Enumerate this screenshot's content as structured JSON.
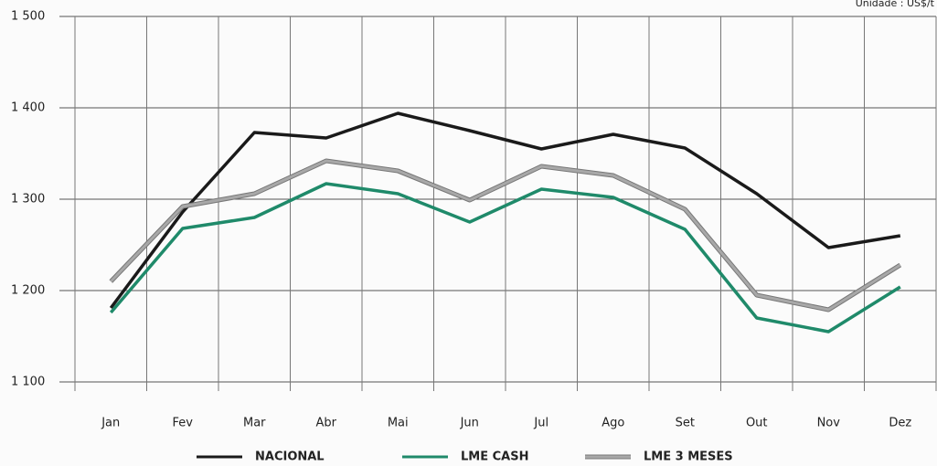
{
  "chart_data": {
    "type": "line",
    "subtitle": "Unidade : US$/t",
    "categories": [
      "Jan",
      "Fev",
      "Mar",
      "Abr",
      "Mai",
      "Jun",
      "Jul",
      "Ago",
      "Set",
      "Out",
      "Nov",
      "Dez"
    ],
    "series": [
      {
        "name": "NACIONAL",
        "color": "#1a1a1a",
        "values": [
          1181,
          1286,
          1373,
          1367,
          1394,
          1375,
          1355,
          1371,
          1356,
          1306,
          1247,
          1260
        ]
      },
      {
        "name": "LME CASH",
        "color": "#1f8a6a",
        "values": [
          1176,
          1268,
          1280,
          1317,
          1306,
          1275,
          1311,
          1302,
          1267,
          1170,
          1155,
          1204
        ]
      },
      {
        "name": "LME 3 MESES",
        "color": "#a8a8a8",
        "values": [
          1210,
          1292,
          1306,
          1342,
          1331,
          1299,
          1336,
          1326,
          1289,
          1195,
          1179,
          1228
        ]
      }
    ],
    "ylim": [
      1100,
      1500
    ],
    "yticks": [
      {
        "value": 1100,
        "label": "1 100"
      },
      {
        "value": 1200,
        "label": "1 200"
      },
      {
        "value": 1300,
        "label": "1 300"
      },
      {
        "value": 1400,
        "label": "1 400"
      },
      {
        "value": 1500,
        "label": "1 500"
      }
    ],
    "grid": true
  }
}
